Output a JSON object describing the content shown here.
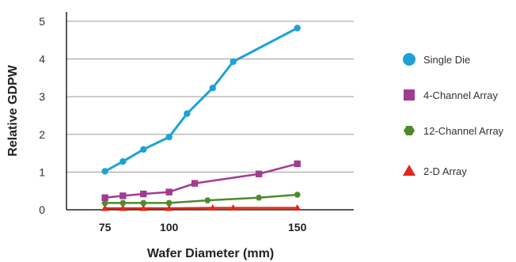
{
  "chart_data": {
    "type": "line",
    "title": "",
    "xlabel": "Wafer Diameter (mm)",
    "ylabel": "Relative GDPW",
    "x_ticks": [
      "75",
      "100",
      "150"
    ],
    "y_ticks": [
      "0",
      "1",
      "2",
      "3",
      "4",
      "5"
    ],
    "xlim": [
      60,
      172
    ],
    "ylim": [
      0,
      5.25
    ],
    "grid": "horizontal",
    "legend_position": "right",
    "series": [
      {
        "name": "Single Die",
        "color": "#1ea2d6",
        "marker": "circle",
        "x": [
          75,
          82,
          90,
          100,
          107,
          117,
          125,
          150
        ],
        "y": [
          1.02,
          1.28,
          1.6,
          1.93,
          2.55,
          3.23,
          3.93,
          4.82
        ]
      },
      {
        "name": "4-Channel Array",
        "color": "#a23b92",
        "marker": "square",
        "x": [
          75,
          82,
          90,
          100,
          110,
          135,
          150
        ],
        "y": [
          0.32,
          0.37,
          0.42,
          0.47,
          0.7,
          0.95,
          1.22
        ]
      },
      {
        "name": "12-Channel Array",
        "color": "#4e8a2c",
        "marker": "hexagon",
        "x": [
          75,
          82,
          90,
          100,
          115,
          135,
          150
        ],
        "y": [
          0.18,
          0.18,
          0.18,
          0.18,
          0.25,
          0.32,
          0.4
        ]
      },
      {
        "name": "2-D Array",
        "color": "#e02a1c",
        "marker": "triangle",
        "x": [
          75,
          82,
          90,
          100,
          117,
          125,
          150
        ],
        "y": [
          0.04,
          0.04,
          0.04,
          0.04,
          0.05,
          0.05,
          0.05
        ]
      }
    ]
  }
}
